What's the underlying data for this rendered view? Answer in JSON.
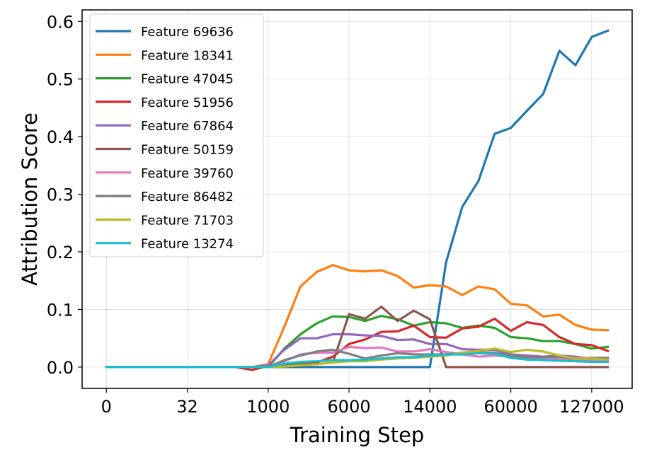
{
  "chart_data": {
    "type": "line",
    "title": "",
    "xlabel": "Training Step",
    "ylabel": "Attribution Score",
    "x_ticks": [
      "0",
      "32",
      "1000",
      "6000",
      "14000",
      "60000",
      "127000"
    ],
    "x_tick_index": [
      0,
      5,
      10,
      15,
      20,
      25,
      30
    ],
    "y_ticks": [
      "0.0",
      "0.1",
      "0.2",
      "0.3",
      "0.4",
      "0.5",
      "0.6"
    ],
    "ylim": [
      -0.037,
      0.62
    ],
    "x_index_range": [
      -1.5,
      32.5
    ],
    "grid": true,
    "legend": "top-left",
    "x_index": [
      0,
      1,
      2,
      3,
      4,
      5,
      6,
      7,
      8,
      9,
      10,
      11,
      12,
      13,
      14,
      15,
      16,
      17,
      18,
      19,
      20,
      21,
      22,
      23,
      24,
      25,
      26,
      27,
      28,
      29,
      30,
      31
    ],
    "series": [
      {
        "name": "Feature 69636",
        "color": "#1f77b4",
        "values": [
          0,
          0,
          0,
          0,
          0,
          0,
          0,
          0,
          0,
          0,
          0,
          0,
          0,
          0,
          0,
          0,
          0,
          0,
          0,
          0,
          0,
          0.182,
          0.278,
          0.323,
          0.405,
          0.415,
          0.445,
          0.474,
          0.549,
          0.524,
          0.573,
          0.584
        ]
      },
      {
        "name": "Feature 18341",
        "color": "#ff7f0e",
        "values": [
          0,
          0,
          0,
          0,
          0,
          0,
          0,
          0,
          0,
          0,
          0.005,
          0.07,
          0.14,
          0.165,
          0.177,
          0.168,
          0.166,
          0.168,
          0.158,
          0.138,
          0.142,
          0.14,
          0.125,
          0.14,
          0.135,
          0.11,
          0.107,
          0.088,
          0.091,
          0.073,
          0.065,
          0.064
        ]
      },
      {
        "name": "Feature 47045",
        "color": "#2ca02c",
        "values": [
          0,
          0,
          0,
          0,
          0,
          0,
          0,
          0,
          0,
          0,
          0,
          0.032,
          0.057,
          0.076,
          0.088,
          0.087,
          0.08,
          0.089,
          0.083,
          0.072,
          0.078,
          0.076,
          0.068,
          0.072,
          0.068,
          0.052,
          0.05,
          0.045,
          0.045,
          0.04,
          0.032,
          0.035
        ]
      },
      {
        "name": "Feature 51956",
        "color": "#d62728",
        "values": [
          0,
          0,
          0,
          0,
          0,
          0,
          0,
          0,
          0,
          -0.005,
          0.002,
          0.003,
          0.005,
          0.008,
          0.018,
          0.04,
          0.048,
          0.061,
          0.062,
          0.072,
          0.052,
          0.051,
          0.067,
          0.07,
          0.084,
          0.063,
          0.078,
          0.073,
          0.052,
          0.04,
          0.038,
          0.028
        ]
      },
      {
        "name": "Feature 67864",
        "color": "#9467bd",
        "values": [
          0,
          0,
          0,
          0,
          0,
          0,
          0,
          0,
          0,
          0,
          0.003,
          0.03,
          0.05,
          0.05,
          0.057,
          0.057,
          0.055,
          0.054,
          0.047,
          0.048,
          0.04,
          0.04,
          0.031,
          0.03,
          0.03,
          0.022,
          0.02,
          0.018,
          0.02,
          0.018,
          0.014,
          0.015
        ]
      },
      {
        "name": "Feature 50159",
        "color": "#8c564b",
        "values": [
          0,
          0,
          0,
          0,
          0,
          0,
          0,
          0,
          0,
          0,
          0,
          0.005,
          0.005,
          0.005,
          0.008,
          0.092,
          0.084,
          0.105,
          0.08,
          0.098,
          0.083,
          0,
          0,
          0,
          0,
          0,
          0,
          0,
          0,
          0,
          0,
          0
        ]
      },
      {
        "name": "Feature 39760",
        "color": "#e377c2",
        "values": [
          0,
          0,
          0,
          0,
          0,
          0,
          0,
          0,
          0,
          0,
          0,
          0.01,
          0.022,
          0.025,
          0.025,
          0.035,
          0.033,
          0.034,
          0.027,
          0.027,
          0.031,
          0.026,
          0.022,
          0.018,
          0.02,
          0.018,
          0.015,
          0.013,
          0.015,
          0.013,
          0.012,
          0.012
        ]
      },
      {
        "name": "Feature 86482",
        "color": "#7f7f7f",
        "values": [
          0,
          0,
          0,
          0,
          0,
          0,
          0,
          0,
          0,
          0,
          0,
          0.012,
          0.02,
          0.027,
          0.03,
          0.023,
          0.015,
          0.02,
          0.024,
          0.022,
          0.022,
          0.022,
          0.025,
          0.026,
          0.025,
          0.02,
          0.017,
          0.017,
          0.018,
          0.015,
          0.016,
          0.016
        ]
      },
      {
        "name": "Feature 71703",
        "color": "#bcbd22",
        "values": [
          0,
          0,
          0,
          0,
          0,
          0,
          0,
          0,
          0,
          0,
          0,
          0.001,
          0.003,
          0.005,
          0.008,
          0.01,
          0.01,
          0.013,
          0.015,
          0.016,
          0.018,
          0.02,
          0.025,
          0.028,
          0.032,
          0.026,
          0.03,
          0.027,
          0.02,
          0.015,
          0.015,
          0.013
        ]
      },
      {
        "name": "Feature 13274",
        "color": "#17becf",
        "values": [
          0,
          0,
          0,
          0,
          0,
          0,
          0,
          0,
          0,
          0,
          0,
          0.006,
          0.009,
          0.01,
          0.012,
          0.012,
          0.013,
          0.015,
          0.017,
          0.017,
          0.02,
          0.022,
          0.022,
          0.024,
          0.023,
          0.016,
          0.013,
          0.012,
          0.011,
          0.01,
          0.009,
          0.009
        ]
      }
    ]
  }
}
